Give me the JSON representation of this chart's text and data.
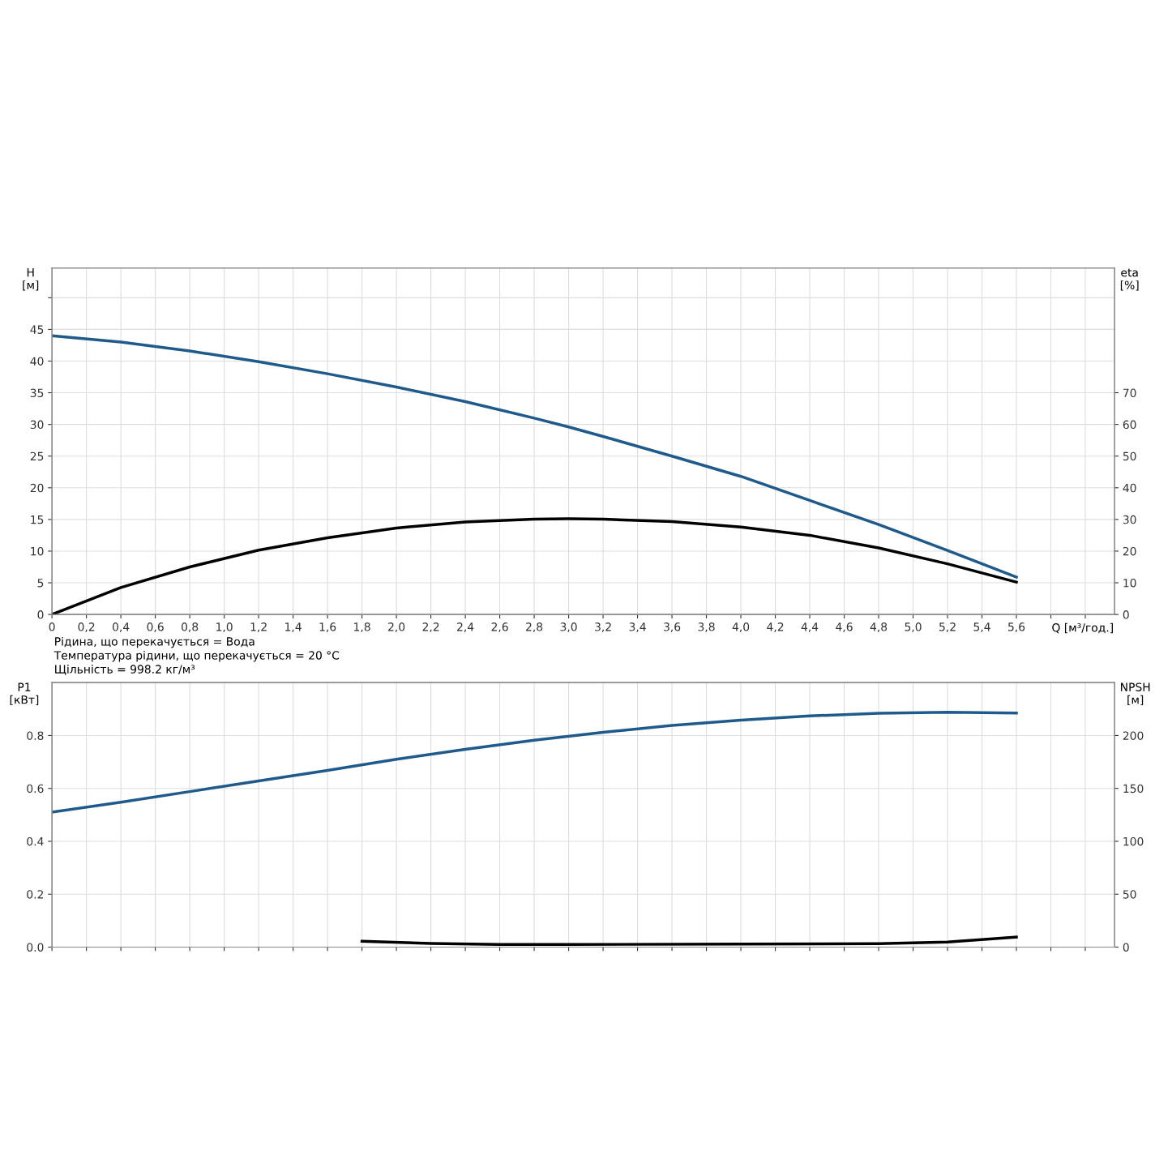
{
  "chart_data": [
    {
      "type": "line",
      "xlabel": "Q [м³/год.]",
      "ylabel": "H\n[м]",
      "y2label": "eta\n[%]",
      "xlim": [
        0,
        6.17
      ],
      "xticks": [
        0,
        {
          "value": 0.2,
          "label": "0,2"
        },
        {
          "value": 0.4,
          "label": "0,4"
        },
        {
          "value": 0.6,
          "label": "0,6"
        },
        {
          "value": 0.8,
          "label": "0,8"
        },
        {
          "value": 1.0,
          "label": "1,0"
        },
        {
          "value": 1.2,
          "label": "1,2"
        },
        {
          "value": 1.4,
          "label": "1,4"
        },
        {
          "value": 1.6,
          "label": "1,6"
        },
        {
          "value": 1.8,
          "label": "1,8"
        },
        {
          "value": 2.0,
          "label": "2,0"
        },
        {
          "value": 2.2,
          "label": "2,2"
        },
        {
          "value": 2.4,
          "label": "2,4"
        },
        {
          "value": 2.6,
          "label": "2,6"
        },
        {
          "value": 2.8,
          "label": "2,8"
        },
        {
          "value": 3.0,
          "label": "3,0"
        },
        {
          "value": 3.2,
          "label": "3,2"
        },
        {
          "value": 3.4,
          "label": "3,4"
        },
        {
          "value": 3.6,
          "label": "3,6"
        },
        {
          "value": 3.8,
          "label": "3,8"
        },
        {
          "value": 4.0,
          "label": "4,0"
        },
        {
          "value": 4.2,
          "label": "4,2"
        },
        {
          "value": 4.4,
          "label": "4,4"
        },
        {
          "value": 4.6,
          "label": "4,6"
        },
        {
          "value": 4.8,
          "label": "4,8"
        },
        {
          "value": 5.0,
          "label": "5,0"
        },
        {
          "value": 5.2,
          "label": "5,2"
        },
        {
          "value": 5.4,
          "label": "5,4"
        },
        {
          "value": 5.6,
          "label": "5,6"
        },
        {
          "value": 5.8,
          "label": null
        },
        {
          "value": 6.0,
          "label": null
        }
      ],
      "ylim": [
        0,
        54.7
      ],
      "yticks": [
        0,
        5,
        10,
        15,
        20,
        25,
        30,
        35,
        40,
        45,
        {
          "value": 50,
          "label": null
        }
      ],
      "y2lim": [
        0,
        109.4
      ],
      "y2ticks": [
        0,
        10,
        20,
        30,
        40,
        50,
        60,
        70
      ],
      "grid": true,
      "annotations": [
        "Рідина, що перекачується = Вода",
        "Температура рідини, що перекачується = 20 °C",
        "Щільність = 998.2 кг/м³"
      ],
      "series": [
        {
          "color": "#1f5a8c",
          "x": [
            0,
            0.4,
            0.8,
            1.2,
            1.6,
            2.0,
            2.4,
            2.8,
            3.0,
            3.2,
            3.6,
            4.0,
            4.4,
            4.8,
            5.2,
            5.6
          ],
          "values": [
            44,
            43,
            41.6,
            39.9,
            38,
            35.9,
            33.6,
            31,
            29.6,
            28.1,
            25,
            21.8,
            18,
            14.2,
            10.1,
            5.9
          ]
        },
        {
          "color": "#000000",
          "axis": "y2",
          "x": [
            0,
            0.4,
            0.8,
            1.2,
            1.6,
            2.0,
            2.4,
            2.8,
            3.0,
            3.2,
            3.6,
            4.0,
            4.4,
            4.8,
            5.2,
            5.6
          ],
          "values": [
            0,
            8.5,
            15,
            20.3,
            24.2,
            27.3,
            29.2,
            30.1,
            30.2,
            30.1,
            29.3,
            27.6,
            25,
            21,
            16,
            10.2
          ]
        }
      ]
    },
    {
      "type": "line",
      "ylabel": "P1\n[кВт]",
      "y2label": "NPSH\n[м]",
      "xlim": [
        0,
        6.17
      ],
      "xticks": [
        0,
        0.2,
        0.4,
        0.6,
        0.8,
        1.0,
        1.2,
        1.4,
        1.6,
        1.8,
        2.0,
        2.2,
        2.4,
        2.6,
        2.8,
        3.0,
        3.2,
        3.4,
        3.6,
        3.8,
        4.0,
        4.2,
        4.4,
        4.6,
        4.8,
        5.0,
        5.2,
        5.4,
        5.6,
        5.8,
        6.0
      ],
      "ylim": [
        0,
        1.0
      ],
      "yticks": [
        {
          "value": 0,
          "label": "0.0"
        },
        0.2,
        0.4,
        0.6,
        0.8
      ],
      "y2lim": [
        0,
        250
      ],
      "y2ticks": [
        0,
        50,
        100,
        150,
        200
      ],
      "grid": true,
      "tick_labels": "y",
      "series": [
        {
          "color": "#1f5a8c",
          "x": [
            0,
            0.4,
            0.8,
            1.2,
            1.6,
            2.0,
            2.4,
            2.8,
            3.2,
            3.6,
            4.0,
            4.4,
            4.8,
            5.2,
            5.6
          ],
          "values": [
            0.51,
            0.548,
            0.588,
            0.628,
            0.668,
            0.71,
            0.748,
            0.782,
            0.812,
            0.838,
            0.858,
            0.874,
            0.884,
            0.888,
            0.885
          ]
        },
        {
          "color": "#000000",
          "axis": "y2",
          "x": [
            1.8,
            2.2,
            2.6,
            3.0,
            4.0,
            4.8,
            5.2,
            5.6
          ],
          "values": [
            5.5,
            3.5,
            2.5,
            2.5,
            2.8,
            3.2,
            4.8,
            9.5
          ]
        }
      ]
    }
  ]
}
